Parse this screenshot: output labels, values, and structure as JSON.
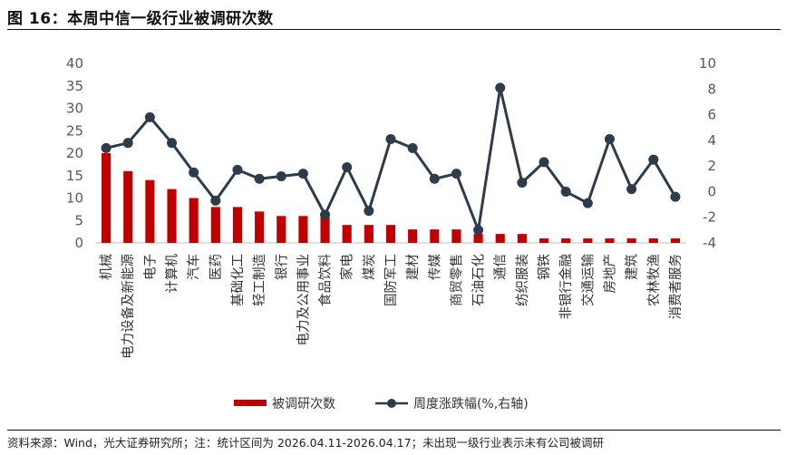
{
  "title": "图 16：本周中信一级行业被调研次数",
  "source": "资料来源：Wind，光大证券研究所；注：统计区间为 2026.04.11-2026.04.17；未出现一级行业表示未有公司被调研",
  "colors": {
    "bar": "#c00000",
    "line": "#2e3b4a"
  },
  "chart_data": {
    "type": "bar",
    "title": "",
    "categories": [
      "机械",
      "电力设备及新能源",
      "电子",
      "计算机",
      "汽车",
      "医药",
      "基础化工",
      "轻工制造",
      "银行",
      "电力及公用事业",
      "食品饮料",
      "家电",
      "煤炭",
      "国防军工",
      "建材",
      "传媒",
      "商贸零售",
      "石油石化",
      "通信",
      "纺织服装",
      "钢铁",
      "非银行金融",
      "交通运输",
      "房地产",
      "建筑",
      "农林牧渔",
      "消费者服务"
    ],
    "series": [
      {
        "name": "被调研次数",
        "type": "bar",
        "axis": "left",
        "values": [
          20,
          16,
          14,
          12,
          10,
          8,
          8,
          7,
          6,
          6,
          6,
          4,
          4,
          4,
          3,
          3,
          3,
          2,
          2,
          2,
          1,
          1,
          1,
          1,
          1,
          1,
          1
        ]
      },
      {
        "name": "周度涨跌幅(%,右轴)",
        "type": "line",
        "axis": "right",
        "values": [
          3.4,
          3.8,
          5.8,
          3.8,
          1.5,
          -0.7,
          1.7,
          1.0,
          1.2,
          1.4,
          -1.8,
          1.9,
          -1.5,
          4.1,
          3.4,
          1.0,
          1.4,
          -3.0,
          8.1,
          0.7,
          2.3,
          0.0,
          -0.9,
          4.1,
          0.2,
          2.5,
          -0.4
        ]
      }
    ],
    "y_left": {
      "min": 0,
      "max": 40,
      "ticks": [
        "0",
        "5",
        "10",
        "15",
        "20",
        "25",
        "30",
        "35",
        "40"
      ]
    },
    "y_right": {
      "min": -4,
      "max": 10,
      "ticks": [
        "-4",
        "-2",
        "0",
        "2",
        "4",
        "6",
        "8",
        "10"
      ]
    },
    "grid": false,
    "legend": "bottom"
  }
}
